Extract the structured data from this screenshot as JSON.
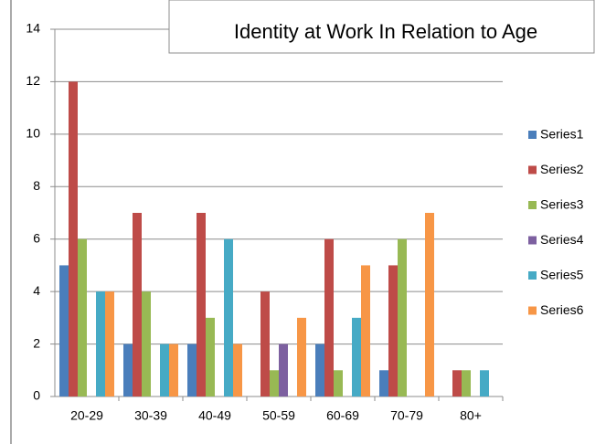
{
  "chart_data": {
    "type": "bar",
    "title": "Identity at Work In Relation to Age",
    "categories": [
      "20-29",
      "30-39",
      "40-49",
      "50-59",
      "60-69",
      "70-79",
      "80+"
    ],
    "series": [
      {
        "name": "Series1",
        "color": "#4a7ebb",
        "values": [
          5,
          2,
          2,
          0,
          2,
          1,
          0
        ]
      },
      {
        "name": "Series2",
        "color": "#be4b48",
        "values": [
          12,
          7,
          7,
          4,
          6,
          5,
          1
        ]
      },
      {
        "name": "Series3",
        "color": "#98b954",
        "values": [
          6,
          4,
          3,
          1,
          1,
          6,
          1
        ]
      },
      {
        "name": "Series4",
        "color": "#7d60a0",
        "values": [
          0,
          0,
          0,
          2,
          0,
          0,
          0
        ]
      },
      {
        "name": "Series5",
        "color": "#46aac5",
        "values": [
          4,
          2,
          6,
          0,
          3,
          0,
          1
        ]
      },
      {
        "name": "Series6",
        "color": "#f79646",
        "values": [
          4,
          2,
          2,
          3,
          5,
          7,
          0
        ]
      }
    ],
    "ylim": [
      0,
      14
    ],
    "yticks": [
      0,
      2,
      4,
      6,
      8,
      10,
      12,
      14
    ],
    "grid": true,
    "legend": "right"
  }
}
